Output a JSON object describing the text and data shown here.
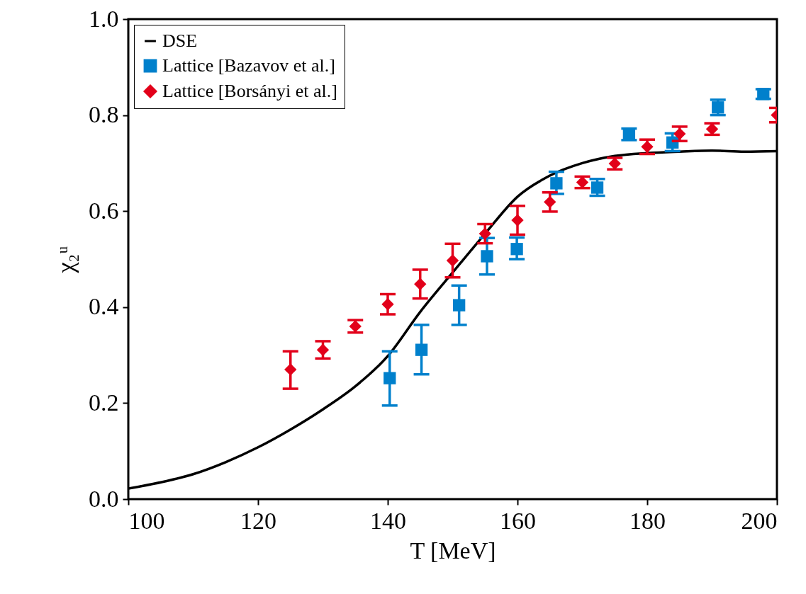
{
  "chart_data": {
    "type": "scatter",
    "xlabel": "T [MeV]",
    "ylabel": "χ₂ᵘ",
    "xlim": [
      100,
      200
    ],
    "ylim": [
      0,
      1
    ],
    "xticks": [
      100,
      120,
      140,
      160,
      180,
      200
    ],
    "yticks": [
      {
        "value": 0,
        "label": "0.0"
      },
      {
        "value": 0.2,
        "label": "0.2"
      },
      {
        "value": 0.4,
        "label": "0.4"
      },
      {
        "value": 0.6,
        "label": "0.6"
      },
      {
        "value": 0.8,
        "label": "0.8"
      },
      {
        "value": 1,
        "label": "1.0"
      }
    ],
    "grid": false,
    "legend": "top left",
    "series": [
      {
        "name": "DSE",
        "type": "line",
        "color": "#000000",
        "line_style": "solid",
        "marker": "none",
        "x": [
          100,
          105,
          110,
          115,
          120,
          125,
          130,
          135,
          140,
          145,
          150,
          155,
          160,
          165,
          170,
          175,
          180,
          185,
          190,
          195,
          200
        ],
        "values": [
          0.022,
          0.035,
          0.052,
          0.077,
          0.108,
          0.145,
          0.187,
          0.235,
          0.298,
          0.39,
          0.472,
          0.553,
          0.63,
          0.674,
          0.7,
          0.715,
          0.721,
          0.724,
          0.726,
          0.724,
          0.725
        ]
      },
      {
        "name": "Lattice [Bazavov et al.]",
        "color": "#0080cc",
        "marker": "square",
        "x": [
          140.3,
          145.2,
          151,
          155.3,
          159.9,
          166,
          172.3,
          177.2,
          183.9,
          190.9,
          197.9
        ],
        "values": [
          0.252,
          0.311,
          0.404,
          0.506,
          0.521,
          0.658,
          0.649,
          0.76,
          0.743,
          0.816,
          0.844
        ],
        "errors": [
          [
            0.195,
            0.308
          ],
          [
            0.26,
            0.363
          ],
          [
            0.363,
            0.445
          ],
          [
            0.468,
            0.544
          ],
          [
            0.5,
            0.545
          ],
          [
            0.636,
            0.682
          ],
          [
            0.632,
            0.667
          ],
          [
            0.748,
            0.772
          ],
          [
            0.725,
            0.762
          ],
          [
            0.8,
            0.832
          ],
          [
            0.834,
            0.854
          ]
        ]
      },
      {
        "name": "Lattice [Borsányi et al.]",
        "color": "#e2001a",
        "marker": "diamond",
        "x": [
          125,
          130,
          135,
          140,
          145,
          150,
          155,
          160,
          165,
          170,
          175,
          180,
          185,
          190,
          200
        ],
        "values": [
          0.27,
          0.311,
          0.36,
          0.406,
          0.448,
          0.497,
          0.553,
          0.581,
          0.619,
          0.66,
          0.699,
          0.734,
          0.761,
          0.771,
          0.8
        ],
        "errors": [
          [
            0.23,
            0.308
          ],
          [
            0.293,
            0.329
          ],
          [
            0.347,
            0.373
          ],
          [
            0.385,
            0.427
          ],
          [
            0.418,
            0.478
          ],
          [
            0.462,
            0.532
          ],
          [
            0.533,
            0.573
          ],
          [
            0.551,
            0.611
          ],
          [
            0.599,
            0.639
          ],
          [
            0.648,
            0.672
          ],
          [
            0.687,
            0.711
          ],
          [
            0.719,
            0.749
          ],
          [
            0.746,
            0.776
          ],
          [
            0.759,
            0.783
          ],
          [
            0.785,
            0.815
          ]
        ]
      }
    ]
  }
}
